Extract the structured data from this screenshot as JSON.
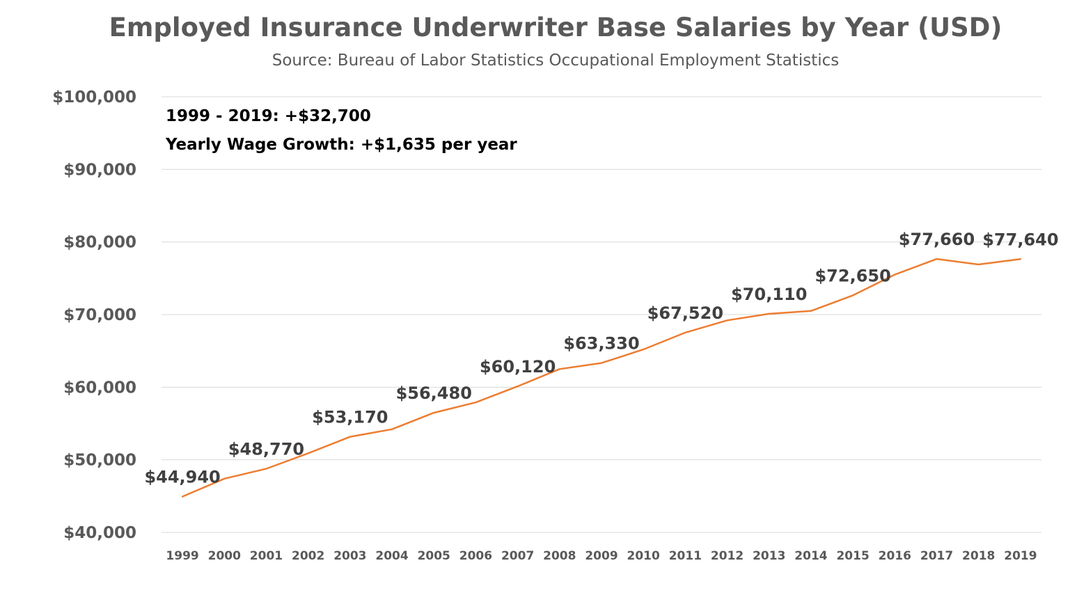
{
  "chart_data": {
    "type": "line",
    "title": "Employed Insurance Underwriter Base Salaries by Year (USD)",
    "subtitle": "Source: Bureau of Labor Statistics Occupational Employment Statistics",
    "xlabel": "",
    "ylabel": "",
    "ylim": [
      40000,
      100000
    ],
    "y_ticks": [
      {
        "value": 40000,
        "label": "$40,000"
      },
      {
        "value": 50000,
        "label": "$50,000"
      },
      {
        "value": 60000,
        "label": "$60,000"
      },
      {
        "value": 70000,
        "label": "$70,000"
      },
      {
        "value": 80000,
        "label": "$80,000"
      },
      {
        "value": 90000,
        "label": "$90,000"
      },
      {
        "value": 100000,
        "label": "$100,000"
      }
    ],
    "grid": true,
    "legend": "none",
    "categories": [
      "1999",
      "2000",
      "2001",
      "2002",
      "2003",
      "2004",
      "2005",
      "2006",
      "2007",
      "2008",
      "2009",
      "2010",
      "2011",
      "2012",
      "2013",
      "2014",
      "2015",
      "2016",
      "2017",
      "2018",
      "2019"
    ],
    "series": [
      {
        "name": "Base Salary",
        "color": "#ed7d31",
        "values": [
          44940,
          47400,
          48770,
          50900,
          53170,
          54200,
          56480,
          57900,
          60120,
          62500,
          63330,
          65200,
          67520,
          69200,
          70110,
          70500,
          72650,
          75500,
          77660,
          76900,
          77640
        ]
      }
    ],
    "data_labels": [
      {
        "index": 0,
        "text": "$44,940"
      },
      {
        "index": 2,
        "text": "$48,770"
      },
      {
        "index": 4,
        "text": "$53,170"
      },
      {
        "index": 6,
        "text": "$56,480"
      },
      {
        "index": 8,
        "text": "$60,120"
      },
      {
        "index": 10,
        "text": "$63,330"
      },
      {
        "index": 12,
        "text": "$67,520"
      },
      {
        "index": 14,
        "text": "$70,110"
      },
      {
        "index": 16,
        "text": "$72,650"
      },
      {
        "index": 18,
        "text": "$77,660"
      },
      {
        "index": 20,
        "text": "$77,640"
      }
    ],
    "annotations": [
      "1999 - 2019:  +$32,700",
      "Yearly Wage Growth: +$1,635 per year"
    ]
  }
}
